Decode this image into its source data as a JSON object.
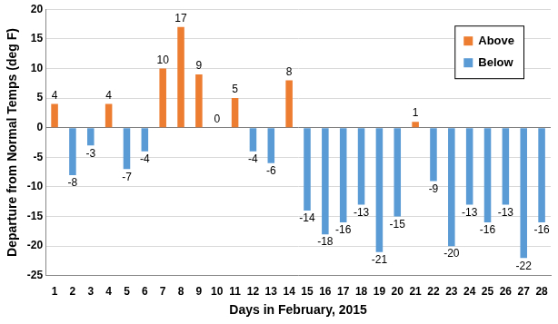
{
  "chart_data": {
    "type": "bar",
    "x_label": "Days in February, 2015",
    "y_label": "Departure from Normal Temps (deg F)",
    "categories": [
      "1",
      "2",
      "3",
      "4",
      "5",
      "6",
      "7",
      "8",
      "9",
      "10",
      "11",
      "12",
      "13",
      "14",
      "15",
      "16",
      "17",
      "18",
      "19",
      "20",
      "21",
      "22",
      "23",
      "24",
      "25",
      "26",
      "27",
      "28"
    ],
    "series": [
      {
        "name": "Above",
        "color": "#ED7D31",
        "values": [
          4,
          null,
          null,
          4,
          null,
          null,
          10,
          17,
          9,
          0,
          5,
          null,
          null,
          8,
          null,
          null,
          null,
          null,
          null,
          null,
          1,
          null,
          null,
          null,
          null,
          null,
          null,
          null
        ]
      },
      {
        "name": "Below",
        "color": "#5B9BD5",
        "values": [
          null,
          -8,
          -3,
          null,
          -7,
          -4,
          null,
          null,
          null,
          null,
          null,
          -4,
          -6,
          null,
          -14,
          -18,
          -16,
          -13,
          -21,
          -15,
          null,
          -9,
          -20,
          -13,
          -16,
          -13,
          -22,
          -16
        ]
      }
    ],
    "ylim": [
      -25,
      20
    ],
    "yticks": [
      -25,
      -20,
      -15,
      -10,
      -5,
      0,
      5,
      10,
      15,
      20
    ],
    "grid": true,
    "legend": "upper right",
    "data_labels": true
  }
}
